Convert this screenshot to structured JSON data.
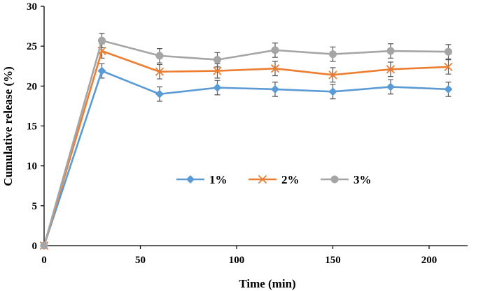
{
  "chart_data": {
    "type": "line",
    "title": "",
    "xlabel": "Time (min)",
    "ylabel": "Cumulative release (%)",
    "xlim": [
      0,
      220
    ],
    "ylim": [
      0,
      30
    ],
    "xticks": [
      0,
      50,
      100,
      150,
      200
    ],
    "yticks": [
      0,
      5,
      10,
      15,
      20,
      25,
      30
    ],
    "grid": false,
    "legend_position": "center",
    "x": [
      0,
      30,
      60,
      90,
      120,
      150,
      180,
      210
    ],
    "series": [
      {
        "name": "1%",
        "color": "#5B9BD5",
        "marker": "diamond",
        "values": [
          0,
          21.9,
          19.0,
          19.8,
          19.6,
          19.3,
          19.9,
          19.6
        ],
        "errors": [
          0,
          0.9,
          0.9,
          0.9,
          0.9,
          0.9,
          0.9,
          0.9
        ]
      },
      {
        "name": "2%",
        "color": "#ED7D31",
        "marker": "x",
        "values": [
          0,
          24.4,
          21.8,
          21.9,
          22.2,
          21.4,
          22.1,
          22.4
        ],
        "errors": [
          0,
          0.9,
          0.9,
          0.9,
          0.9,
          0.9,
          0.9,
          0.9
        ]
      },
      {
        "name": "3%",
        "color": "#A5A5A5",
        "marker": "circle",
        "values": [
          0,
          25.7,
          23.8,
          23.3,
          24.5,
          24.0,
          24.4,
          24.3
        ],
        "errors": [
          0,
          0.9,
          0.9,
          0.9,
          0.9,
          0.9,
          0.9,
          0.9
        ]
      }
    ]
  }
}
